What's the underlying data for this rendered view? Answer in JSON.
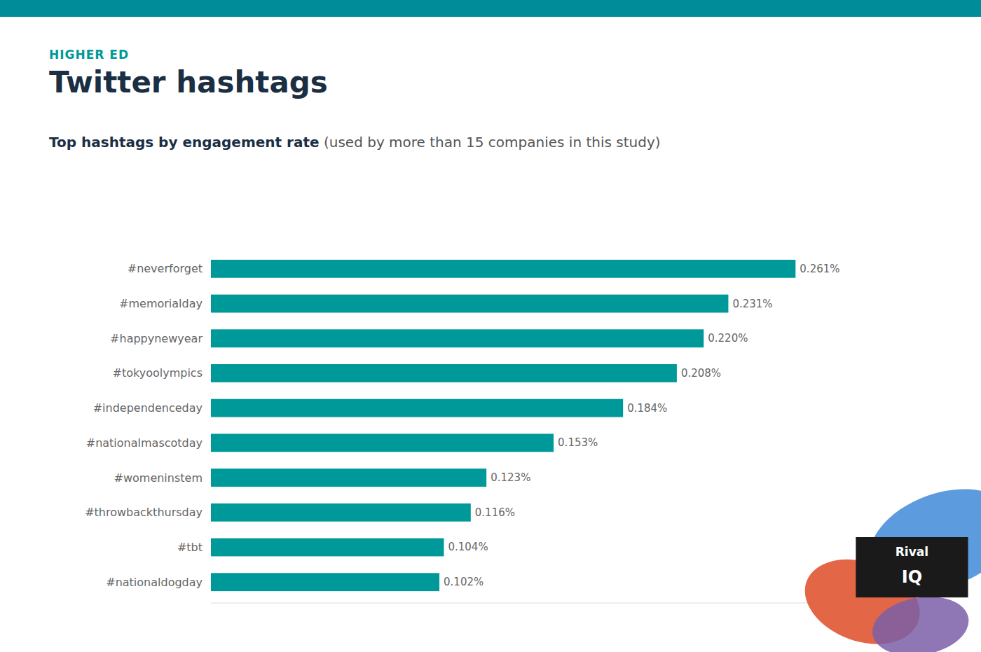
{
  "chart_data": {
    "type": "bar",
    "orientation": "horizontal",
    "title": "Twitter hashtags",
    "subtitle": [
      "Top hashtags by engagement rate",
      " (used by more than 15 companies in this study)"
    ],
    "annotations": [
      "HIGHER ED",
      "Rival",
      "IQ"
    ],
    "categories": [
      "#neverforget",
      "#memorialday",
      "#happynewyear",
      "#tokyoolympics",
      "#independenceday",
      "#nationalmascotday",
      "#womeninstem",
      "#throwbackthursday",
      "#tbt",
      "#nationaldogday"
    ],
    "values": [
      0.261,
      0.231,
      0.22,
      0.208,
      0.184,
      0.153,
      0.123,
      0.116,
      0.104,
      0.102
    ],
    "value_labels": [
      "0.261%",
      "0.231%",
      "0.220%",
      "0.208%",
      "0.184%",
      "0.153%",
      "0.123%",
      "0.116%",
      "0.104%",
      "0.102%"
    ],
    "color": "#009999",
    "xlim": [
      0,
      0.3
    ],
    "data_labels": true,
    "tick_labels": "y",
    "grid": false
  }
}
